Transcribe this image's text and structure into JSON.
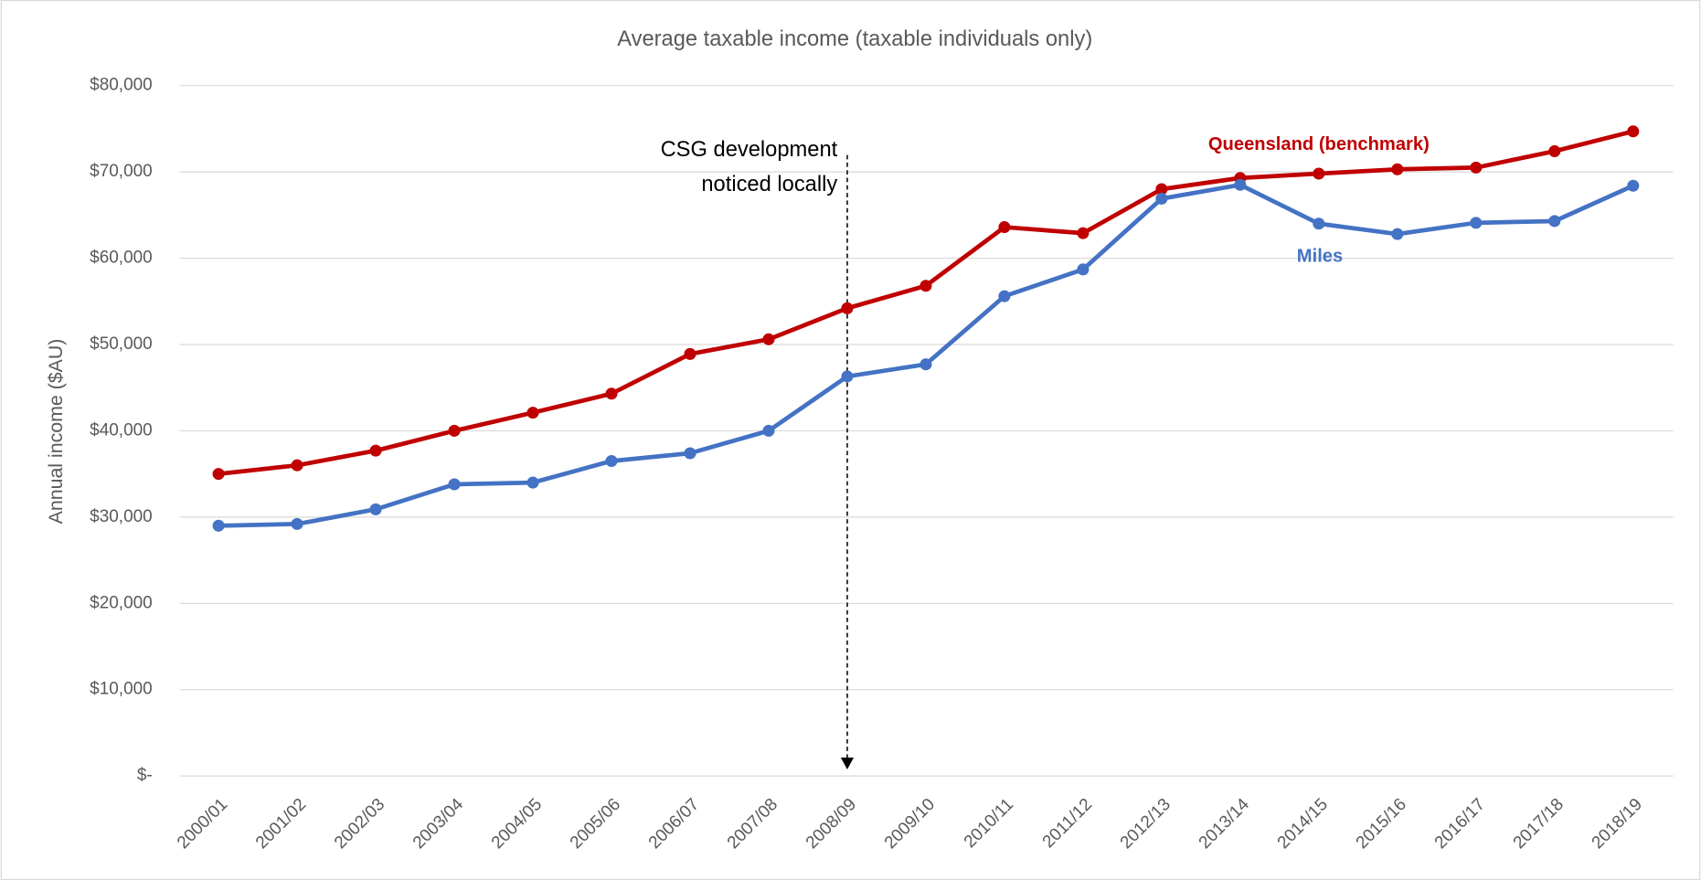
{
  "chart_data": {
    "type": "line",
    "title": "Average taxable income (taxable individuals only)",
    "y_label": "Annual income ($AU)",
    "categories": [
      "2000/01",
      "2001/02",
      "2002/03",
      "2003/04",
      "2004/05",
      "2005/06",
      "2006/07",
      "2007/08",
      "2008/09",
      "2009/10",
      "2010/11",
      "2011/12",
      "2012/13",
      "2013/14",
      "2014/15",
      "2015/16",
      "2016/17",
      "2017/18",
      "2018/19"
    ],
    "series": [
      {
        "name": "Queensland (benchmark)",
        "color": "#c00000",
        "values": [
          35000,
          36000,
          37700,
          40000,
          42100,
          44300,
          48900,
          50600,
          54200,
          56800,
          63600,
          62900,
          68000,
          69300,
          69800,
          70300,
          70500,
          72400,
          74700
        ]
      },
      {
        "name": "Miles",
        "color": "#4472c4",
        "values": [
          29000,
          29200,
          30900,
          33800,
          34000,
          36500,
          37400,
          40000,
          46300,
          47700,
          55600,
          58700,
          66900,
          68500,
          64000,
          62800,
          64100,
          64300,
          68400
        ]
      }
    ],
    "ylim": [
      0,
      80000
    ],
    "yticks": [
      {
        "value": 0,
        "label": "$-"
      },
      {
        "value": 10000,
        "label": "$10,000"
      },
      {
        "value": 20000,
        "label": "$20,000"
      },
      {
        "value": 30000,
        "label": "$30,000"
      },
      {
        "value": 40000,
        "label": "$40,000"
      },
      {
        "value": 50000,
        "label": "$50,000"
      },
      {
        "value": 60000,
        "label": "$60,000"
      },
      {
        "value": 70000,
        "label": "$70,000"
      },
      {
        "value": 80000,
        "label": "$80,000"
      }
    ],
    "grid": true,
    "annotations": [
      {
        "text": [
          "CSG development",
          "noticed locally"
        ],
        "at": "2008/09"
      }
    ]
  }
}
